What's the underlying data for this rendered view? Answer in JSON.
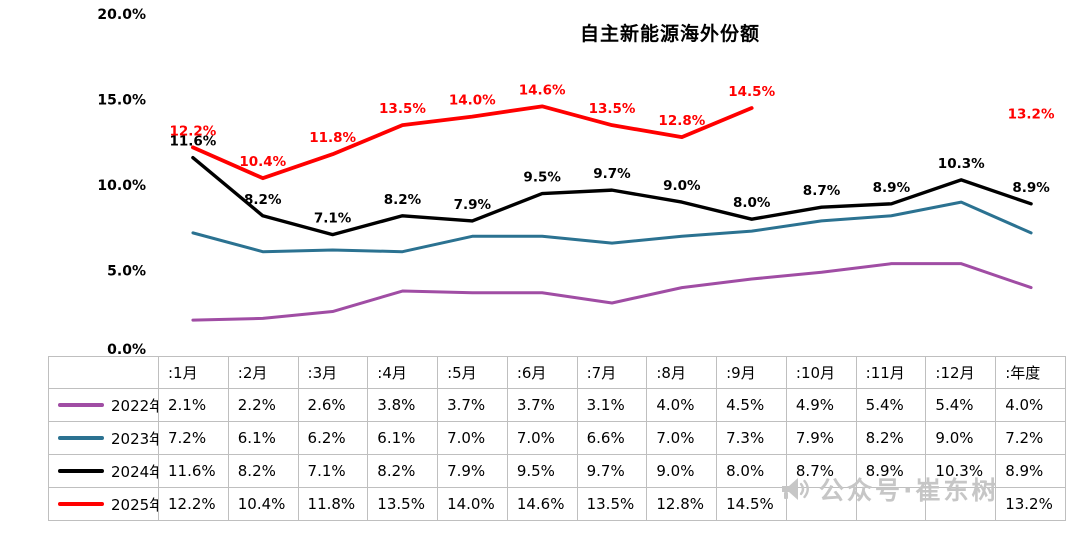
{
  "chart_data": {
    "type": "line",
    "title": "自主新能源海外份额",
    "categories": [
      ":1月",
      ":2月",
      ":3月",
      ":4月",
      ":5月",
      ":6月",
      ":7月",
      ":8月",
      ":9月",
      ":10月",
      ":11月",
      ":12月",
      ":年度"
    ],
    "yticks": [
      "20.0%",
      "15.0%",
      "10.0%",
      "5.0%",
      "0.0%"
    ],
    "ylim": [
      0,
      20
    ],
    "grid": false,
    "legend_position": "table-left-column",
    "value_format": "0.0%",
    "series": [
      {
        "name": "2022年",
        "color": "#A04DA4",
        "width": 3,
        "show_labels": false,
        "values": [
          2.1,
          2.2,
          2.6,
          3.8,
          3.7,
          3.7,
          3.1,
          4.0,
          4.5,
          4.9,
          5.4,
          5.4,
          4.0
        ]
      },
      {
        "name": "2023年",
        "color": "#2B7291",
        "width": 3,
        "show_labels": false,
        "values": [
          7.2,
          6.1,
          6.2,
          6.1,
          7.0,
          7.0,
          6.6,
          7.0,
          7.3,
          7.9,
          8.2,
          9.0,
          7.2
        ]
      },
      {
        "name": "2024年",
        "color": "#000000",
        "width": 3.4,
        "show_labels": true,
        "values": [
          11.6,
          8.2,
          7.1,
          8.2,
          7.9,
          9.5,
          9.7,
          9.0,
          8.0,
          8.7,
          8.9,
          10.3,
          8.9
        ]
      },
      {
        "name": "2025年",
        "color": "#FF0000",
        "width": 3.8,
        "show_labels": true,
        "values": [
          12.2,
          10.4,
          11.8,
          13.5,
          14.0,
          14.6,
          13.5,
          12.8,
          14.5,
          null,
          null,
          null,
          13.2
        ]
      }
    ]
  },
  "watermark": {
    "icon": "megaphone-icon",
    "text": "公众号·崔东树",
    "color": "#c6c6c6"
  }
}
